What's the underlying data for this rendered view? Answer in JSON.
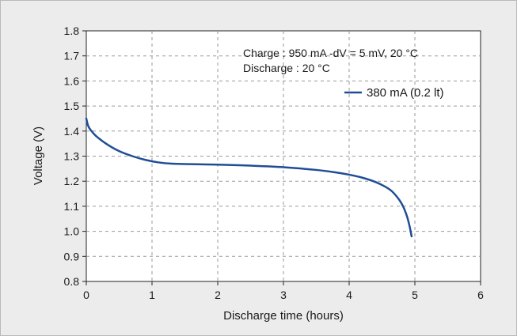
{
  "chart_data": {
    "type": "line",
    "xlabel": "Discharge time (hours)",
    "ylabel": "Voltage (V)",
    "xlim": [
      0,
      6
    ],
    "ylim": [
      0.8,
      1.8
    ],
    "x_ticks": [
      "0",
      "1",
      "2",
      "3",
      "4",
      "5",
      "6"
    ],
    "y_ticks": [
      "0.8",
      "0.9",
      "1.0",
      "1.1",
      "1.2",
      "1.3",
      "1.4",
      "1.5",
      "1.6",
      "1.7",
      "1.8"
    ],
    "grid": true,
    "legend_position": "top-right",
    "annotations": [
      "Charge : 950 mA -dV = 5 mV, 20 °C",
      "Discharge : 20 °C"
    ],
    "series": [
      {
        "name": "380 mA (0.2 lt)",
        "color": "#1f4e96",
        "x": [
          0,
          0.03,
          0.08,
          0.15,
          0.3,
          0.5,
          0.7,
          0.9,
          1.1,
          1.3,
          1.6,
          2.0,
          2.5,
          3.0,
          3.5,
          3.8,
          4.0,
          4.2,
          4.4,
          4.55,
          4.65,
          4.75,
          4.82,
          4.88,
          4.92,
          4.95
        ],
        "y": [
          1.45,
          1.42,
          1.4,
          1.38,
          1.35,
          1.32,
          1.3,
          1.285,
          1.275,
          1.27,
          1.268,
          1.266,
          1.262,
          1.256,
          1.245,
          1.235,
          1.226,
          1.214,
          1.197,
          1.178,
          1.16,
          1.13,
          1.1,
          1.06,
          1.02,
          0.98
        ]
      }
    ]
  }
}
